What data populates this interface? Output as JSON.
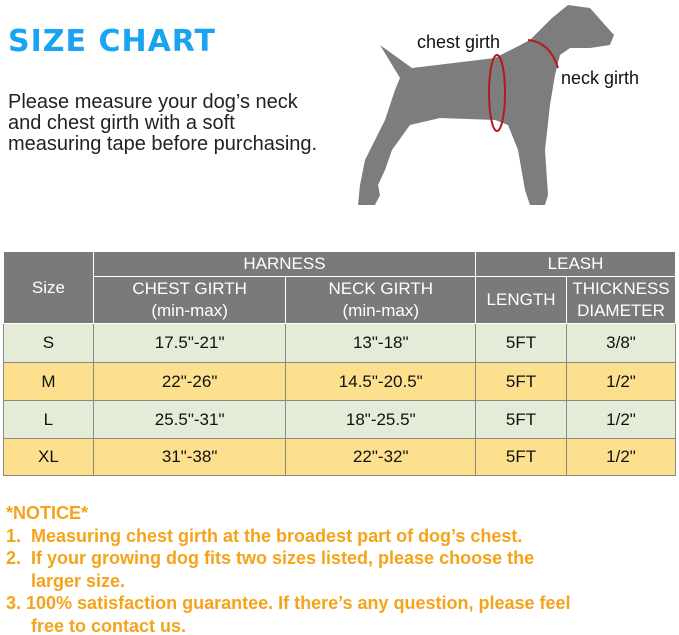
{
  "title": "SIZE CHART",
  "intro": "Please measure your dog’s neck and chest girth with a soft measuring tape before purchasing.",
  "diagram": {
    "chest_label": "chest girth",
    "neck_label": "neck girth",
    "body_color": "#7d7d7d",
    "tape_color": "#b01c1c"
  },
  "table": {
    "size_header": "Size",
    "harness_header": "HARNESS",
    "leash_header": "LEASH",
    "chest_header": "CHEST GIRTH",
    "chest_sub": "(min-max)",
    "neck_header": "NECK GIRTH",
    "neck_sub": "(min-max)",
    "length_header": "LENGTH",
    "thickness_header": "THICKNESS",
    "diameter_header": "DIAMETER",
    "rows": [
      {
        "size": "S",
        "chest": "17.5\"-21\"",
        "neck": "13\"-18\"",
        "length": "5FT",
        "thickness": "3/8\""
      },
      {
        "size": "M",
        "chest": "22\"-26\"",
        "neck": "14.5\"-20.5\"",
        "length": "5FT",
        "thickness": "1/2\""
      },
      {
        "size": "L",
        "chest": "25.5\"-31\"",
        "neck": "18\"-25.5\"",
        "length": "5FT",
        "thickness": "1/2\""
      },
      {
        "size": "XL",
        "chest": "31\"-38\"",
        "neck": "22\"-32\"",
        "length": "5FT",
        "thickness": "1/2\""
      }
    ],
    "colors": {
      "header": "#7a7a7a",
      "row_green": "#e4ecd8",
      "row_yellow": "#fde08e"
    }
  },
  "notice": {
    "heading": "*NOTICE*",
    "lines": [
      "1.  Measuring chest girth at the broadest part of dog’s chest.",
      "2.  If your growing dog fits two sizes listed, please choose the",
      "     larger size.",
      "3. 100% satisfaction guarantee. If there’s any question, please feel",
      "     free to contact us."
    ],
    "color": "#f5a31a"
  }
}
